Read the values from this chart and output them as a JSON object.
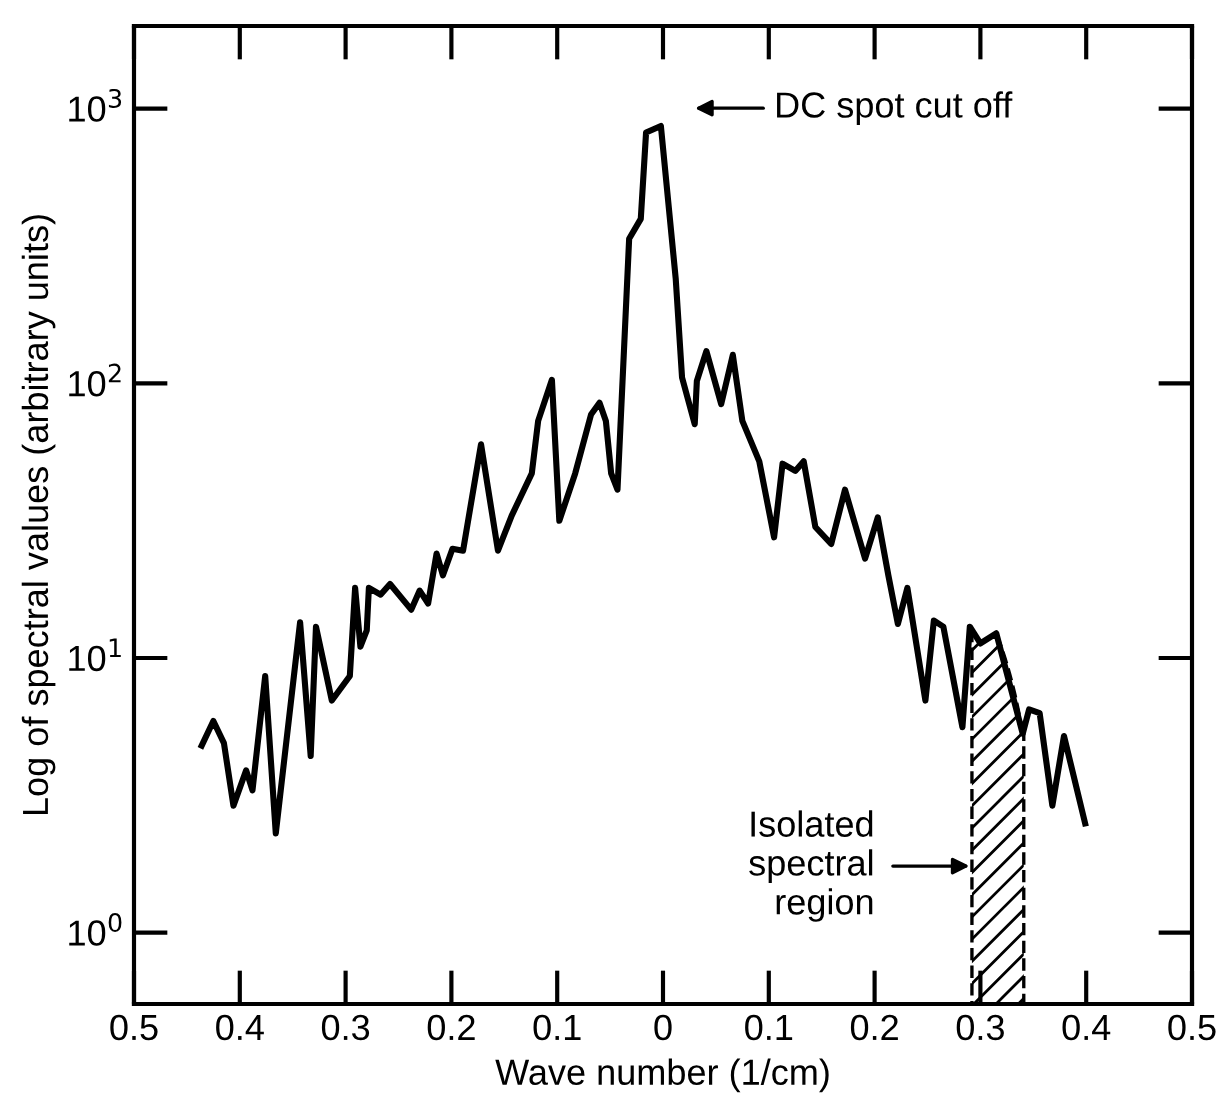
{
  "chart_data": {
    "type": "line",
    "xlabel": "Wave number (1/cm)",
    "ylabel": "Log of spectral values (arbitrary units)",
    "log": "y",
    "grid": false,
    "legend": false,
    "marker": "none",
    "line_style": "solid",
    "xlim": [
      -0.5,
      0.5
    ],
    "ylim": [
      0.55,
      2000
    ],
    "xticks": [
      {
        "value": -0.5,
        "label": "0.5"
      },
      {
        "value": -0.4,
        "label": "0.4"
      },
      {
        "value": -0.3,
        "label": "0.3"
      },
      {
        "value": -0.2,
        "label": "0.2"
      },
      {
        "value": -0.1,
        "label": "0.1"
      },
      0,
      0.1,
      0.2,
      0.3,
      0.4,
      0.5
    ],
    "yticks": [
      {
        "value": 1,
        "label": "10$^{0}$"
      },
      {
        "value": 10,
        "label": "10$^{1}$"
      },
      {
        "value": 100,
        "label": "10$^{2}$"
      },
      {
        "value": 1000,
        "label": "10$^{3}$"
      }
    ],
    "series": [
      {
        "color": "#000000",
        "x": [
          -0.436,
          -0.425,
          -0.415,
          -0.406,
          -0.394,
          -0.388,
          -0.376,
          -0.366,
          -0.343,
          -0.333,
          -0.328,
          -0.313,
          -0.296,
          -0.291,
          -0.286,
          -0.28,
          -0.278,
          -0.267,
          -0.258,
          -0.238,
          -0.23,
          -0.222,
          -0.214,
          -0.208,
          -0.199,
          -0.189,
          -0.172,
          -0.156,
          -0.143,
          -0.124,
          -0.118,
          -0.105,
          -0.098,
          -0.083,
          -0.068,
          -0.06,
          -0.054,
          -0.049,
          -0.043,
          -0.032,
          -0.021,
          -0.016,
          -0.002,
          0.012,
          0.018,
          0.03,
          0.032,
          0.041,
          0.055,
          0.066,
          0.075,
          0.091,
          0.105,
          0.113,
          0.125,
          0.133,
          0.144,
          0.159,
          0.172,
          0.191,
          0.203,
          0.213,
          0.222,
          0.231,
          0.248,
          0.256,
          0.265,
          0.283,
          0.29,
          0.3,
          0.315,
          0.34,
          0.346,
          0.356,
          0.368,
          0.379,
          0.399
        ],
        "values": [
          4.8,
          5.9,
          4.9,
          2.9,
          3.9,
          3.3,
          8.6,
          2.3,
          13.5,
          4.4,
          13,
          7.0,
          8.6,
          18,
          11,
          12.6,
          18,
          17,
          18.6,
          15,
          17.6,
          15.8,
          24,
          20,
          25,
          24.6,
          60,
          24.6,
          33,
          47,
          73,
          103,
          31.6,
          47,
          77,
          85,
          73,
          47,
          41,
          336,
          397,
          819,
          865,
          241,
          105,
          71,
          102,
          131,
          84,
          127,
          73,
          52,
          27.5,
          51,
          48,
          52,
          30,
          26,
          41,
          23,
          32.5,
          20,
          13.3,
          18,
          7.0,
          13.7,
          13,
          5.6,
          13,
          11.3,
          12.3,
          5.3,
          6.5,
          6.3,
          2.9,
          5.2,
          2.5
        ]
      }
    ],
    "bands": [
      {
        "axis": "x",
        "from": 0.292,
        "to": 0.341,
        "color": "#000000"
      }
    ],
    "annotations": [
      "DC spot cut off",
      "Isolated\nspectral\nregion"
    ]
  }
}
